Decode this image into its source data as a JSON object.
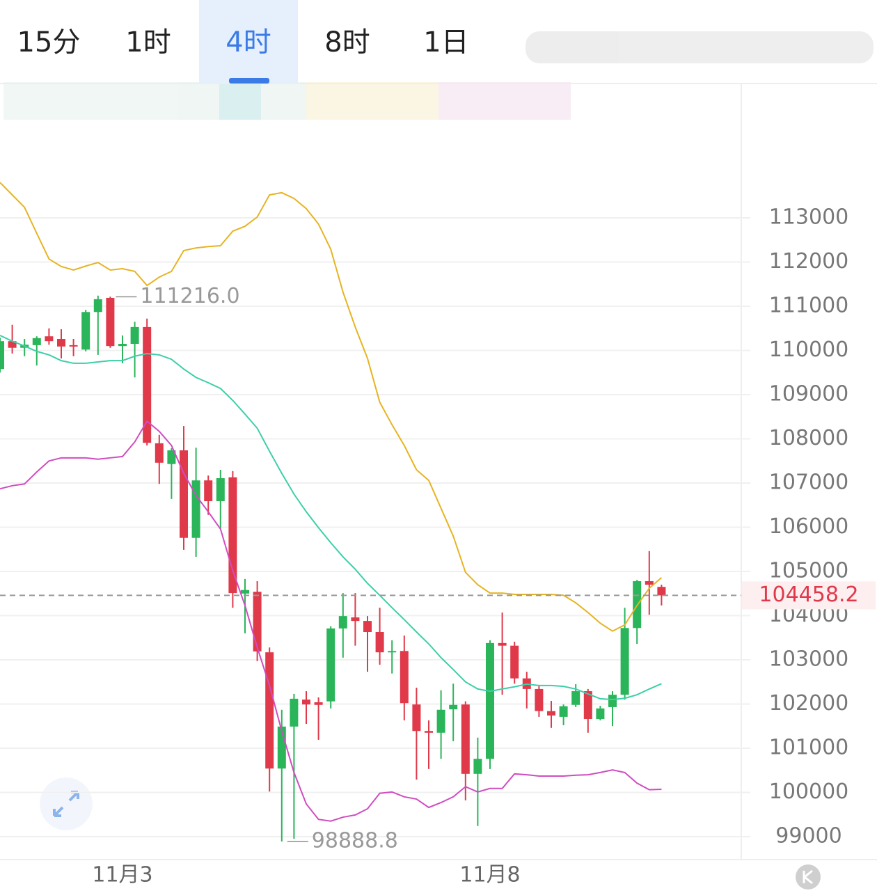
{
  "tabs": [
    "15分",
    "1时",
    "4时",
    "8时",
    "1日"
  ],
  "active_tab": 2,
  "chart_data": {
    "type": "candlestick",
    "categories": [
      null,
      null,
      null,
      null,
      null,
      null,
      null,
      null,
      null,
      null,
      "11月3",
      null,
      null,
      null,
      null,
      null,
      null,
      null,
      null,
      null,
      null,
      null,
      null,
      null,
      null,
      null,
      null,
      null,
      null,
      null,
      null,
      null,
      null,
      null,
      null,
      null,
      null,
      null,
      null,
      null,
      "11月8",
      null,
      null,
      null,
      null,
      null,
      null,
      null,
      null,
      null,
      null,
      null,
      null,
      null,
      null
    ],
    "open": [
      109580,
      110210,
      110060,
      110120,
      110320,
      110260,
      110120,
      110020,
      110870,
      111190,
      110100,
      110150,
      110530,
      107900,
      107430,
      107740,
      105760,
      107060,
      106590,
      107130,
      104500,
      104540,
      103170,
      100540,
      101490,
      102100,
      102040,
      102060,
      103710,
      103960,
      103880,
      103630,
      103170,
      103200,
      101990,
      101390,
      101350,
      101880,
      101990,
      100420,
      100760,
      103380,
      103320,
      102580,
      102340,
      101840,
      101710,
      101980,
      102290,
      101660,
      101930,
      102210,
      103720,
      104780,
      104650
    ],
    "high": [
      110290,
      110580,
      110260,
      110320,
      110500,
      110480,
      110260,
      110920,
      111240,
      111216,
      110340,
      110650,
      110720,
      108090,
      107790,
      108290,
      107800,
      107170,
      107300,
      107270,
      104830,
      104780,
      103280,
      101870,
      102230,
      102290,
      102150,
      103760,
      104510,
      104510,
      103990,
      104180,
      103440,
      103550,
      102370,
      101630,
      102310,
      102460,
      102060,
      101240,
      103440,
      104070,
      103410,
      102730,
      102420,
      102070,
      101990,
      102450,
      102340,
      101960,
      102290,
      104180,
      104810,
      105460,
      104700
    ],
    "low": [
      109500,
      109930,
      109870,
      109660,
      110130,
      109820,
      109870,
      109980,
      109900,
      110060,
      109710,
      109390,
      107850,
      106980,
      106640,
      105490,
      105330,
      106280,
      105960,
      104180,
      103600,
      102970,
      100020,
      98888.8,
      98950,
      101550,
      101190,
      101900,
      103050,
      103320,
      102730,
      102890,
      102690,
      101630,
      100290,
      100530,
      100760,
      101160,
      99820,
      99240,
      100530,
      102210,
      102460,
      101900,
      101710,
      101460,
      101520,
      101930,
      101350,
      101630,
      101500,
      102100,
      103360,
      104020,
      104230
    ],
    "close": [
      110210,
      110060,
      110130,
      110280,
      110210,
      110090,
      110090,
      110870,
      111160,
      110100,
      110150,
      110530,
      107910,
      107460,
      107740,
      105760,
      107060,
      106590,
      107110,
      104510,
      104580,
      103190,
      100540,
      101490,
      102120,
      101990,
      101980,
      103710,
      103990,
      103880,
      103630,
      103170,
      103200,
      102020,
      101390,
      101350,
      101870,
      101980,
      100420,
      100760,
      103380,
      103320,
      102580,
      102340,
      101840,
      101740,
      101950,
      102290,
      101660,
      101900,
      102210,
      103720,
      104780,
      104700,
      104458.2
    ],
    "up_color": "#2bb55a",
    "down_color": "#e0394a",
    "bands": [
      {
        "color": "#e6b422",
        "values": [
          113800,
          113520,
          113240,
          112650,
          112070,
          111900,
          111820,
          111910,
          111990,
          111820,
          111850,
          111790,
          111470,
          111660,
          111790,
          112260,
          112320,
          112350,
          112370,
          112700,
          112810,
          113020,
          113520,
          113570,
          113440,
          113210,
          112860,
          112290,
          111320,
          110530,
          109820,
          108830,
          108320,
          107850,
          107300,
          107060,
          106430,
          105800,
          104980,
          104700,
          104510,
          104510,
          104480,
          104480,
          104480,
          104480,
          104460,
          104290,
          104070,
          103830,
          103650,
          103790,
          104230,
          104620,
          104860
        ]
      },
      {
        "color": "#3ccfa8",
        "values": [
          110340,
          110210,
          110100,
          109980,
          109900,
          109770,
          109710,
          109710,
          109740,
          109770,
          109770,
          109870,
          109930,
          109900,
          109800,
          109580,
          109390,
          109270,
          109140,
          108870,
          108560,
          108240,
          107720,
          107220,
          106750,
          106350,
          105990,
          105650,
          105330,
          105050,
          104730,
          104460,
          104180,
          103910,
          103630,
          103360,
          103050,
          102780,
          102500,
          102340,
          102290,
          102340,
          102390,
          102450,
          102420,
          102420,
          102400,
          102340,
          102230,
          102120,
          102100,
          102130,
          102210,
          102340,
          102460
        ]
      },
      {
        "color": "#d04cc0",
        "values": [
          106870,
          106940,
          106980,
          107250,
          107500,
          107570,
          107570,
          107570,
          107540,
          107570,
          107600,
          107930,
          108400,
          108170,
          107850,
          107220,
          106720,
          106350,
          105960,
          105020,
          104230,
          103280,
          102420,
          101390,
          100450,
          99740,
          99390,
          99350,
          99440,
          99490,
          99630,
          99980,
          100010,
          99900,
          99850,
          99660,
          99770,
          99900,
          100130,
          100010,
          100090,
          100090,
          100420,
          100400,
          100370,
          100370,
          100370,
          100390,
          100400,
          100450,
          100510,
          100450,
          100210,
          100060,
          100070
        ]
      }
    ],
    "current_price": 104458.2,
    "annotations": [
      {
        "value": 111216,
        "label": "111216.0"
      },
      {
        "value": 98888.8,
        "label": "98888.8"
      }
    ],
    "ylim": [
      98480,
      116040
    ],
    "yticks": [
      99000,
      100000,
      101000,
      102000,
      103000,
      104000,
      105000,
      106000,
      107000,
      108000,
      109000,
      110000,
      111000,
      112000,
      113000
    ],
    "grid": true
  }
}
